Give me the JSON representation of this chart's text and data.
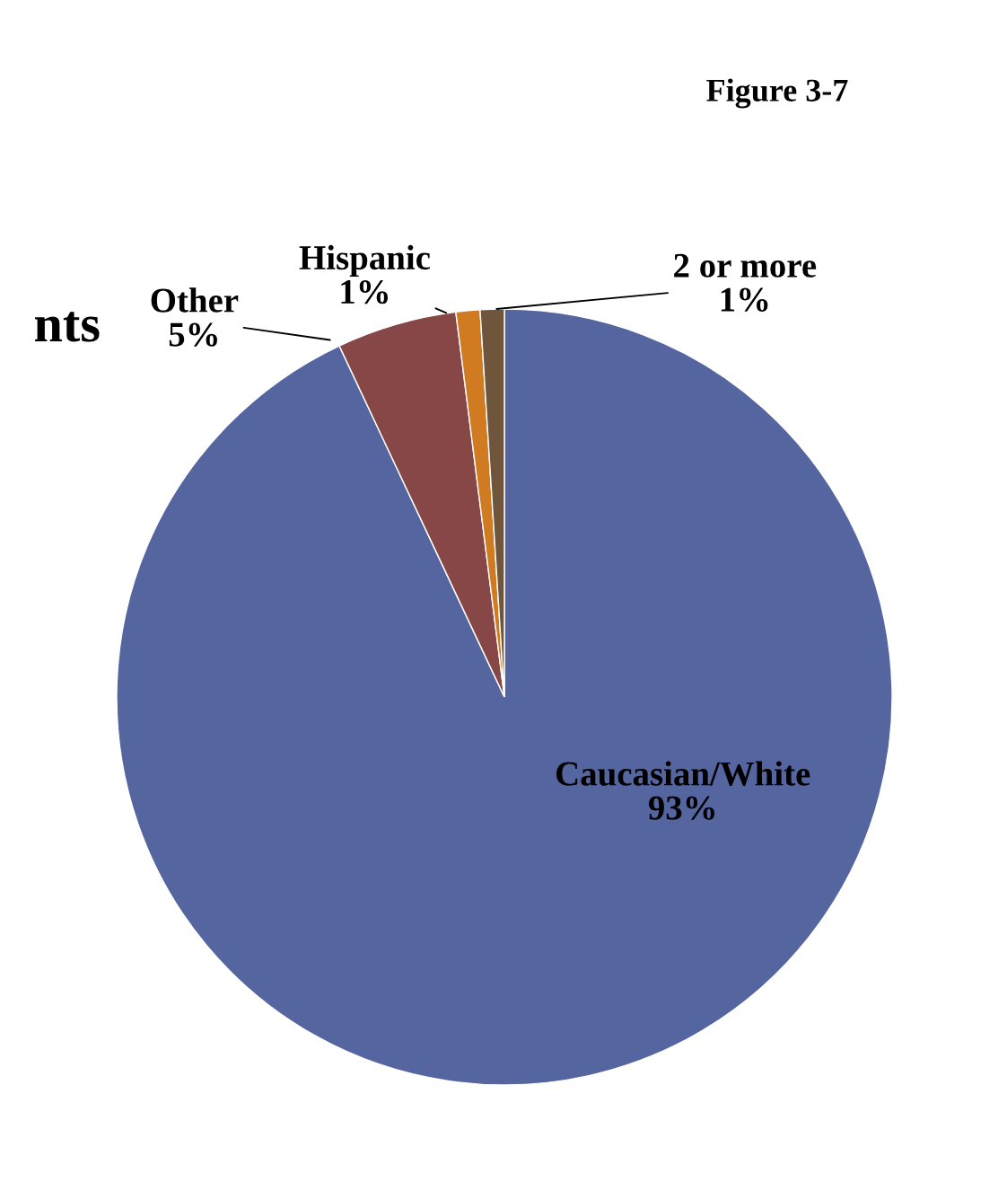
{
  "chart_data": {
    "type": "pie",
    "title": "Figure 3-7",
    "categories": [
      "Caucasian/White",
      "Other",
      "Hispanic",
      "2 or more"
    ],
    "values": [
      93,
      5,
      1,
      1
    ],
    "colors": [
      "#5565a0",
      "#874747",
      "#d07a22",
      "#6f553c"
    ],
    "value_labels": [
      "93%",
      "5%",
      "1%",
      "1%"
    ],
    "annotations": [
      "nts"
    ]
  }
}
